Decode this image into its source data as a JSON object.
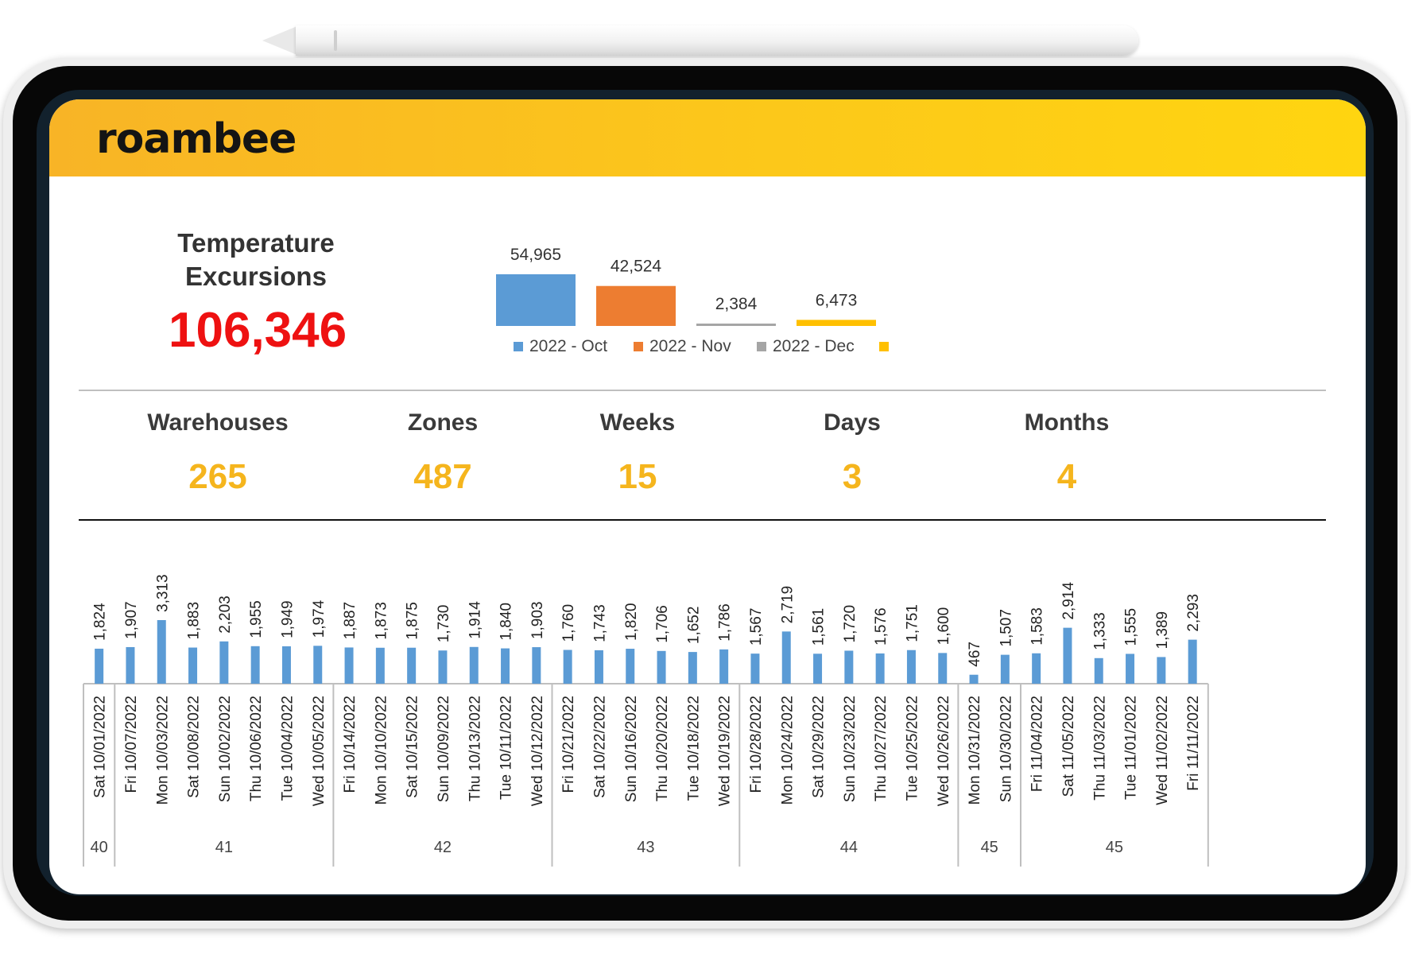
{
  "app": {
    "logo": "roambee"
  },
  "summary": {
    "title_line1": "Temperature",
    "title_line2": "Excursions",
    "total": "106,346"
  },
  "stats": [
    {
      "label": "Warehouses",
      "value": "265"
    },
    {
      "label": "Zones",
      "value": "487"
    },
    {
      "label": "Weeks",
      "value": "15"
    },
    {
      "label": "Days",
      "value": "3"
    },
    {
      "label": "Months",
      "value": "4"
    }
  ],
  "colors": {
    "header_start": "#f8b426",
    "header_end": "#ffd510",
    "total_red": "#ee1111",
    "stat_value": "#f5b51d",
    "series_oct": "#5b9bd5",
    "series_nov": "#ed7d31",
    "series_dec": "#a5a5a5",
    "series_blank": "#ffc000",
    "daily_bar": "#5b9bd5"
  },
  "chart_data": [
    {
      "type": "bar",
      "title": "",
      "categories": [
        "2022 - Oct",
        "2022 - Nov",
        "2022 - Dec",
        ""
      ],
      "values": [
        54965,
        42524,
        2384,
        6473
      ],
      "value_labels": [
        "54,965",
        "42,524",
        "2,384",
        "6,473"
      ],
      "series_colors": [
        "#5b9bd5",
        "#ed7d31",
        "#a5a5a5",
        "#ffc000"
      ],
      "legend": [
        "2022 - Oct",
        "2022 - Nov",
        "2022 - Dec",
        ""
      ],
      "legend_position": "bottom"
    },
    {
      "type": "bar",
      "title": "",
      "categories": [
        "Sat 10/01/2022",
        "Fri 10/07/2022",
        "Mon 10/03/2022",
        "Sat 10/08/2022",
        "Sun 10/02/2022",
        "Thu 10/06/2022",
        "Tue 10/04/2022",
        "Wed 10/05/2022",
        "Fri 10/14/2022",
        "Mon 10/10/2022",
        "Sat 10/15/2022",
        "Sun 10/09/2022",
        "Thu 10/13/2022",
        "Tue 10/11/2022",
        "Wed 10/12/2022",
        "Fri 10/21/2022",
        "Sat 10/22/2022",
        "Sun 10/16/2022",
        "Thu 10/20/2022",
        "Tue 10/18/2022",
        "Wed 10/19/2022",
        "Fri 10/28/2022",
        "Mon 10/24/2022",
        "Sat 10/29/2022",
        "Sun 10/23/2022",
        "Thu 10/27/2022",
        "Tue 10/25/2022",
        "Wed 10/26/2022",
        "Mon 10/31/2022",
        "Sun 10/30/2022",
        "Fri 11/04/2022",
        "Sat 11/05/2022",
        "Thu 11/03/2022",
        "Tue 11/01/2022",
        "Wed 11/02/2022",
        "Fri 11/11/2022"
      ],
      "values": [
        1824,
        1907,
        3313,
        1883,
        2203,
        1955,
        1949,
        1974,
        1887,
        1873,
        1875,
        1730,
        1914,
        1840,
        1903,
        1760,
        1743,
        1820,
        1706,
        1652,
        1786,
        1567,
        2719,
        1561,
        1720,
        1576,
        1751,
        1600,
        467,
        1507,
        1583,
        2914,
        1333,
        1555,
        1389,
        2293
      ],
      "value_labels": [
        "1,824",
        "1,907",
        "3,313",
        "1,883",
        "2,203",
        "1,955",
        "1,949",
        "1,974",
        "1,887",
        "1,873",
        "1,875",
        "1,730",
        "1,914",
        "1,840",
        "1,903",
        "1,760",
        "1,743",
        "1,820",
        "1,706",
        "1,652",
        "1,786",
        "1,567",
        "2,719",
        "1,561",
        "1,720",
        "1,576",
        "1,751",
        "1,600",
        "467",
        "1,507",
        "1,583",
        "2,914",
        "1,333",
        "1,555",
        "1,389",
        "2,293"
      ],
      "groups": [
        {
          "label": "40",
          "count": 1
        },
        {
          "label": "41",
          "count": 7
        },
        {
          "label": "42",
          "count": 7
        },
        {
          "label": "43",
          "count": 6
        },
        {
          "label": "44",
          "count": 7
        },
        {
          "label": "45",
          "count": 2
        },
        {
          "label": "45",
          "count": 6
        }
      ],
      "color": "#5b9bd5"
    }
  ]
}
